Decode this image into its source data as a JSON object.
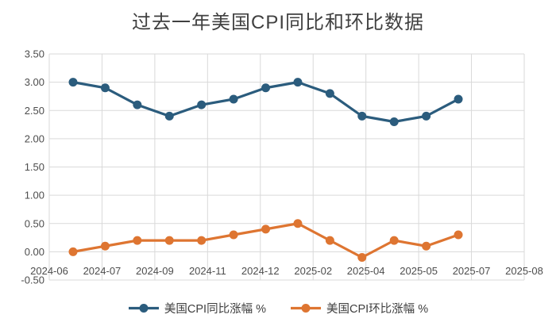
{
  "title": "过去一年美国CPI同比和环比数据",
  "chart_data": {
    "type": "line",
    "title": "过去一年美国CPI同比和环比数据",
    "x": [
      "2024-06",
      "2024-07",
      "2024-08",
      "2024-09",
      "2024-10",
      "2024-11",
      "2024-12",
      "2025-01",
      "2025-02",
      "2025-03",
      "2025-04",
      "2025-05",
      "2025-06"
    ],
    "series": [
      {
        "name": "美国CPI同比涨幅 %",
        "color": "#2B5C7D",
        "values": [
          3.0,
          2.9,
          2.6,
          2.4,
          2.6,
          2.7,
          2.9,
          3.0,
          2.8,
          2.4,
          2.3,
          2.4,
          2.7
        ]
      },
      {
        "name": "美国CPI环比涨幅 %",
        "color": "#DE7531",
        "values": [
          0.0,
          0.1,
          0.2,
          0.2,
          0.2,
          0.3,
          0.4,
          0.5,
          0.2,
          -0.1,
          0.2,
          0.1,
          0.3
        ]
      }
    ],
    "x_tick_labels": [
      "2024-06",
      "2024-07",
      "2024-09",
      "2024-11",
      "2024-12",
      "2025-02",
      "2025-04",
      "2025-05",
      "2025-07",
      "2025-08"
    ],
    "y_tick_labels": [
      "3.50",
      "3.00",
      "2.50",
      "2.00",
      "1.50",
      "1.00",
      "0.50",
      "0.00",
      "-0.50"
    ],
    "ylim": [
      -0.5,
      3.5
    ],
    "grid": true,
    "legend_position": "bottom"
  },
  "colors": {
    "grid": "#D9D9D9",
    "tick_text": "#4D4D4D",
    "title_text": "#404040",
    "background": "#FFFFFF"
  }
}
